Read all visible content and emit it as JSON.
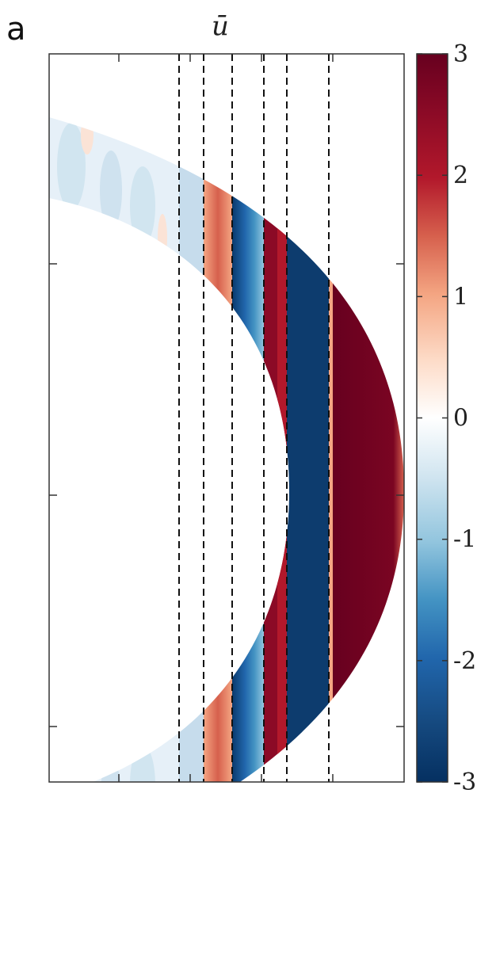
{
  "panel_label": "a",
  "chart_data": {
    "type": "heatmap",
    "title": "ū",
    "xlabel": "",
    "ylabel": "",
    "x_ticks": 4,
    "y_ticks": 3,
    "colormap": "diverging red-blue (RdBu reversed)",
    "colorbar": {
      "label": "",
      "range": [
        -3,
        3
      ],
      "ticks": [
        3,
        2,
        1,
        0,
        -1,
        -2,
        -3
      ],
      "tick_labels": [
        "3",
        "2",
        "1",
        "0",
        "-1",
        "-2",
        "-3"
      ],
      "colors": {
        "max": "#67001f",
        "high": "#b2182b",
        "mid_high": "#f4a582",
        "zero": "#ffffff",
        "mid_low": "#92c5de",
        "low": "#2166ac",
        "min": "#053061"
      }
    },
    "dashed_vertical_lines": 6,
    "bands": [
      {
        "region": "left tip, upper and lower",
        "value": -0.3
      },
      {
        "region": "between lines 1 and 2",
        "value": 1.2
      },
      {
        "region": "between lines 2 and 3",
        "value": -0.2
      },
      {
        "region": "between lines 3 and 4",
        "value": -2.5
      },
      {
        "region": "between lines 4 and 5",
        "value": 3
      },
      {
        "region": "between lines 5 and 6",
        "value": -3
      },
      {
        "region": "right of line 6",
        "value": 3
      }
    ]
  }
}
